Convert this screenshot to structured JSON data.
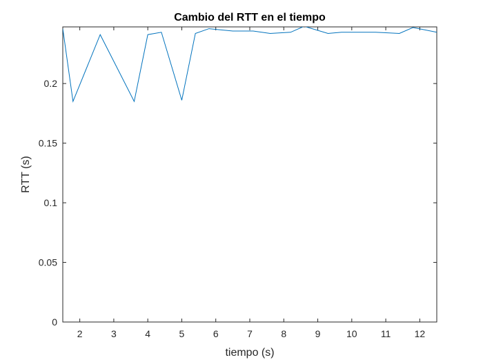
{
  "chart_data": {
    "type": "line",
    "title": "Cambio del RTT en el tiempo",
    "xlabel": "tiempo (s)",
    "ylabel": "RTT (s)",
    "xlim": [
      1.5,
      12.5
    ],
    "ylim": [
      0,
      0.2475
    ],
    "xticks": [
      "2",
      "3",
      "4",
      "5",
      "6",
      "7",
      "8",
      "9",
      "10",
      "11",
      "12"
    ],
    "yticks": [
      "0",
      "0.05",
      "0.1",
      "0.15",
      "0.2"
    ],
    "grid": false,
    "legend": "none",
    "series": [
      {
        "color": "#0072bd",
        "x": [
          1.5,
          1.8,
          2.6,
          3.6,
          4.0,
          4.4,
          5.0,
          5.4,
          5.8,
          6.5,
          7.1,
          7.6,
          8.2,
          8.6,
          9.3,
          9.7,
          10.7,
          11.4,
          11.8,
          12.5
        ],
        "y": [
          0.246,
          0.185,
          0.241,
          0.185,
          0.241,
          0.243,
          0.186,
          0.242,
          0.246,
          0.244,
          0.244,
          0.242,
          0.243,
          0.248,
          0.242,
          0.243,
          0.243,
          0.242,
          0.247,
          0.243
        ]
      }
    ]
  }
}
